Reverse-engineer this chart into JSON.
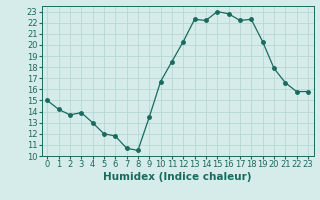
{
  "x": [
    0,
    1,
    2,
    3,
    4,
    5,
    6,
    7,
    8,
    9,
    10,
    11,
    12,
    13,
    14,
    15,
    16,
    17,
    18,
    19,
    20,
    21,
    22,
    23
  ],
  "y": [
    15,
    14.2,
    13.7,
    13.9,
    13.0,
    12.0,
    11.8,
    10.7,
    10.5,
    13.5,
    16.7,
    18.5,
    20.3,
    22.3,
    22.2,
    23.0,
    22.8,
    22.2,
    22.3,
    20.3,
    17.9,
    16.6,
    15.8,
    15.8
  ],
  "xlabel": "Humidex (Indice chaleur)",
  "xlim": [
    -0.5,
    23.5
  ],
  "ylim": [
    10,
    23.5
  ],
  "yticks": [
    10,
    11,
    12,
    13,
    14,
    15,
    16,
    17,
    18,
    19,
    20,
    21,
    22,
    23
  ],
  "xticks": [
    0,
    1,
    2,
    3,
    4,
    5,
    6,
    7,
    8,
    9,
    10,
    11,
    12,
    13,
    14,
    15,
    16,
    17,
    18,
    19,
    20,
    21,
    22,
    23
  ],
  "line_color": "#1a6b5e",
  "marker_size": 2.5,
  "bg_color": "#d6ecea",
  "grid_color": "#b8d8d5",
  "xlabel_fontsize": 7.5,
  "tick_fontsize": 6.0,
  "xlabel_fontweight": "bold"
}
